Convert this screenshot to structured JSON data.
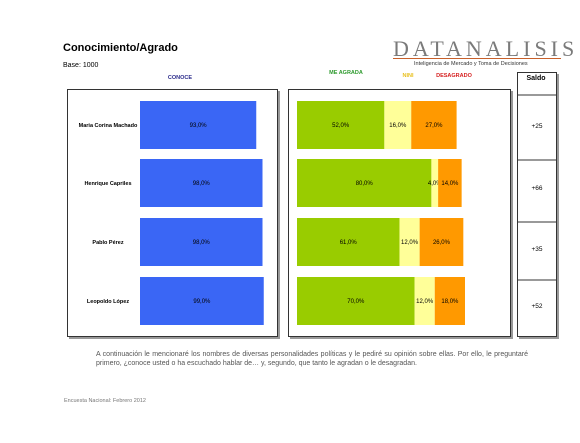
{
  "header": {
    "title": "Conocimiento/Agrado",
    "base": "Base: 1000",
    "logo": "DATANALISIS",
    "tagline": "Inteligencia de Mercado y Toma de Decisiones"
  },
  "columns": {
    "conoce": "CONOCE",
    "agrada": "ME AGRADA",
    "nini": "NINI",
    "desagrado": "DESAGRADO",
    "saldo": "Saldo"
  },
  "colors": {
    "conoce": "#3a66f5",
    "agrada": "#99cc00",
    "nini": "#ffff99",
    "desagrado": "#ff9900"
  },
  "chart_data": [
    {
      "type": "bar",
      "orientation": "horizontal",
      "categories": [
        "Maria Corina Machado",
        "Henrique Capriles",
        "Pablo Pérez",
        "Leopoldo López"
      ],
      "series": [
        {
          "name": "CONOCE",
          "values": [
            93.0,
            98.0,
            98.0,
            99.0
          ],
          "labels": [
            "93,0%",
            "98,0%",
            "98,0%",
            "99,0%"
          ]
        }
      ],
      "xlim": [
        0,
        100
      ]
    },
    {
      "type": "bar",
      "orientation": "horizontal",
      "stacked": true,
      "categories": [
        "Maria Corina Machado",
        "Henrique Capriles",
        "Pablo Pérez",
        "Leopoldo López"
      ],
      "series": [
        {
          "name": "ME AGRADA",
          "values": [
            52.0,
            80.0,
            61.0,
            70.0
          ],
          "labels": [
            "52,0%",
            "80,0%",
            "61,0%",
            "70,0%"
          ]
        },
        {
          "name": "NINI",
          "values": [
            16.0,
            4.0,
            12.0,
            12.0
          ],
          "labels": [
            "16,0%",
            "4,0%",
            "12,0%",
            "12,0%"
          ]
        },
        {
          "name": "DESAGRADO",
          "values": [
            27.0,
            14.0,
            26.0,
            18.0
          ],
          "labels": [
            "27,0%",
            "14,0%",
            "26,0%",
            "18,0%"
          ]
        }
      ],
      "saldo": [
        "+25",
        "+66",
        "+35",
        "+52"
      ]
    }
  ],
  "footnote": "A continuación le mencionaré los nombres de diversas personalidades políticas y le pediré su opinión sobre ellas. Por ello, le preguntaré primero, ¿conoce usted o ha escuchado hablar de… y, segundo, que tanto le agradan o le desagradan.",
  "source": "Encuesta Nacional: Febrero 2012"
}
